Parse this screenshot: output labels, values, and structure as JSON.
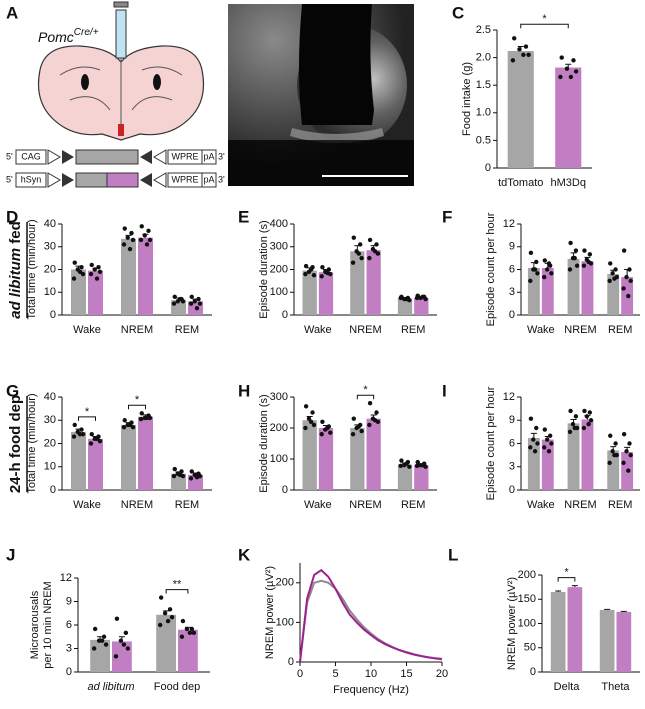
{
  "panels": [
    "A",
    "B",
    "C",
    "D",
    "E",
    "F",
    "G",
    "H",
    "I",
    "J",
    "K",
    "L"
  ],
  "schematic": {
    "genotype": "Pomc",
    "genotype_sup": "Cre/+",
    "rows": [
      [
        "5'",
        "CAG",
        "WPRE",
        "pA",
        "3'"
      ],
      [
        "5'",
        "hSyn",
        "WPRE",
        "pA",
        "3'"
      ]
    ]
  },
  "row_labels": [
    [
      "ad libitum",
      " fed"
    ],
    [
      "24-h food dep"
    ]
  ],
  "chart_data": [
    {
      "type": "bar",
      "ylabel": "Food intake (g)",
      "categories": [
        "tdTomato",
        "hM3Dq"
      ],
      "colors": [
        "#a6a6a6",
        "#c17ec3"
      ],
      "values": [
        2.12,
        1.82
      ],
      "errors": [
        0.08,
        0.06
      ],
      "points": [
        [
          2.35,
          2.2,
          2.15,
          2.05,
          1.95,
          2.05
        ],
        [
          2.0,
          1.95,
          1.8,
          1.75,
          1.65,
          1.65
        ]
      ],
      "significance": "*",
      "ylim": [
        0,
        2.5
      ],
      "yticks": [
        0,
        0.5,
        {
          "value": 1,
          "label": "1.0"
        },
        1.5,
        {
          "value": 2,
          "label": "2.0"
        },
        2.5
      ]
    },
    {
      "type": "grouped-bar",
      "ylabel": "Total time (min/hour)",
      "categories": [
        "Wake",
        "NREM",
        "REM"
      ],
      "series": [
        {
          "color": "#a6a6a6",
          "values": [
            20,
            33.5,
            6.5
          ],
          "errors": [
            1.5,
            1.5,
            1
          ],
          "points": [
            [
              23,
              21,
              20,
              18,
              16,
              19
            ],
            [
              38,
              36,
              34,
              33,
              31,
              29
            ],
            [
              8,
              7,
              6,
              6,
              5,
              7
            ]
          ]
        },
        {
          "color": "#c17ec3",
          "values": [
            19.5,
            34,
            6
          ],
          "errors": [
            1,
            1.5,
            1
          ],
          "points": [
            [
              22,
              21,
              20,
              19,
              18,
              16
            ],
            [
              39,
              37,
              35,
              33,
              33,
              31
            ],
            [
              8,
              7,
              6,
              5,
              5,
              3
            ]
          ]
        }
      ],
      "significance": [
        null,
        null,
        null
      ],
      "ylim": [
        0,
        40
      ],
      "yticks": [
        0,
        10,
        20,
        30,
        40
      ]
    },
    {
      "type": "grouped-bar",
      "ylabel": "Episode duration (s)",
      "categories": [
        "Wake",
        "NREM",
        "REM"
      ],
      "series": [
        {
          "color": "#a6a6a6",
          "values": [
            195,
            280,
            72
          ],
          "errors": [
            12,
            25,
            5
          ],
          "points": [
            [
              215,
              210,
              190,
              175,
              180,
              200
            ],
            [
              340,
              310,
              280,
              250,
              230,
              270
            ],
            [
              80,
              75,
              70,
              65,
              75,
              70
            ]
          ]
        },
        {
          "color": "#c17ec3",
          "values": [
            188,
            285,
            75
          ],
          "errors": [
            12,
            20,
            4
          ],
          "points": [
            [
              210,
              200,
              190,
              180,
              170,
              185
            ],
            [
              330,
              310,
              290,
              270,
              250,
              280
            ],
            [
              85,
              80,
              75,
              70,
              75,
              80
            ]
          ]
        }
      ],
      "significance": [
        null,
        null,
        null
      ],
      "ylim": [
        0,
        400
      ],
      "yticks": [
        0,
        100,
        200,
        300,
        400
      ]
    },
    {
      "type": "grouped-bar",
      "ylabel": "Episode count per hour",
      "categories": [
        "Wake",
        "NREM",
        "REM"
      ],
      "series": [
        {
          "color": "#a6a6a6",
          "values": [
            6.2,
            7.4,
            5.4
          ],
          "errors": [
            0.7,
            0.8,
            0.5
          ],
          "points": [
            [
              8.2,
              7,
              6,
              5.5,
              4.5,
              6
            ],
            [
              9.5,
              8.5,
              7.5,
              6.5,
              6,
              7.5
            ],
            [
              6.8,
              6,
              5.5,
              5,
              4.5,
              4.8
            ]
          ]
        },
        {
          "color": "#c17ec3",
          "values": [
            6.2,
            7.1,
            5.0
          ],
          "errors": [
            0.6,
            0.5,
            1
          ],
          "points": [
            [
              7.2,
              6.5,
              6,
              5.5,
              5,
              6.8
            ],
            [
              8.5,
              8,
              7.3,
              6.8,
              6.5,
              7
            ],
            [
              8.5,
              6,
              5,
              4.5,
              3.5,
              2.5
            ]
          ]
        }
      ],
      "significance": [
        null,
        null,
        null
      ],
      "ylim": [
        0,
        12
      ],
      "yticks": [
        0,
        3,
        6,
        9,
        12
      ]
    },
    {
      "type": "grouped-bar",
      "ylabel": "Total time (min/hour)",
      "categories": [
        "Wake",
        "NREM",
        "REM"
      ],
      "series": [
        {
          "color": "#a6a6a6",
          "values": [
            25,
            28,
            7
          ],
          "errors": [
            1.2,
            1,
            0.8
          ],
          "points": [
            [
              28,
              26,
              25,
              24,
              23,
              24
            ],
            [
              30,
              29,
              28,
              27,
              27,
              28
            ],
            [
              9,
              8,
              7,
              6,
              6,
              6.5
            ]
          ]
        },
        {
          "color": "#c17ec3",
          "values": [
            22,
            31.5,
            6.5
          ],
          "errors": [
            1,
            0.8,
            0.8
          ],
          "points": [
            [
              24,
              23,
              22,
              21,
              20,
              22
            ],
            [
              33,
              32,
              31,
              31,
              30.5,
              31
            ],
            [
              8,
              7,
              6.5,
              6,
              5,
              5.5
            ]
          ]
        }
      ],
      "significance": [
        "*",
        "*",
        null
      ],
      "ylim": [
        0,
        40
      ],
      "yticks": [
        0,
        10,
        20,
        30,
        40
      ]
    },
    {
      "type": "grouped-bar",
      "ylabel": "Episode duration (s)",
      "categories": [
        "Wake",
        "NREM",
        "REM"
      ],
      "series": [
        {
          "color": "#a6a6a6",
          "values": [
            225,
            200,
            82
          ],
          "errors": [
            12,
            10,
            5
          ],
          "points": [
            [
              270,
              250,
              230,
              210,
              200,
              220
            ],
            [
              230,
              210,
              200,
              190,
              180,
              205
            ],
            [
              95,
              90,
              80,
              75,
              78,
              85
            ]
          ]
        },
        {
          "color": "#c17ec3",
          "values": [
            200,
            230,
            80
          ],
          "errors": [
            8,
            12,
            4
          ],
          "points": [
            [
              220,
              205,
              195,
              185,
              180,
              200
            ],
            [
              280,
              250,
              230,
              220,
              210,
              225
            ],
            [
              90,
              85,
              80,
              75,
              78,
              80
            ]
          ]
        }
      ],
      "significance": [
        null,
        "*",
        null
      ],
      "ylim": [
        0,
        300
      ],
      "yticks": [
        0,
        100,
        200,
        300
      ]
    },
    {
      "type": "grouped-bar",
      "ylabel": "Episode count per hour",
      "categories": [
        "Wake",
        "NREM",
        "REM"
      ],
      "series": [
        {
          "color": "#a6a6a6",
          "values": [
            6.7,
            8.6,
            5.1
          ],
          "errors": [
            0.6,
            0.5,
            0.5
          ],
          "points": [
            [
              9.2,
              8,
              6.5,
              6,
              5.5,
              5
            ],
            [
              10.2,
              9.5,
              8.5,
              8,
              7.5,
              8
            ],
            [
              7,
              6,
              5,
              4.5,
              3.5,
              4.5
            ]
          ]
        },
        {
          "color": "#c17ec3",
          "values": [
            6.5,
            9.1,
            4.9
          ],
          "errors": [
            0.4,
            0.5,
            0.6
          ],
          "points": [
            [
              7.8,
              7,
              6.5,
              6,
              5.5,
              5
            ],
            [
              10.2,
              10,
              9.5,
              9,
              8,
              8.5
            ],
            [
              7.2,
              6,
              5,
              4.5,
              3.5,
              2.5
            ]
          ]
        }
      ],
      "significance": [
        null,
        null,
        null
      ],
      "ylim": [
        0,
        12
      ],
      "yticks": [
        0,
        3,
        6,
        9,
        12
      ]
    },
    {
      "type": "grouped-bar",
      "ylabel": [
        "Microarousals",
        "per 10 min NREM"
      ],
      "categories": [
        "ad libitum",
        "Food dep"
      ],
      "category_italic": [
        true,
        false
      ],
      "series": [
        {
          "color": "#a6a6a6",
          "values": [
            4.1,
            7.3
          ],
          "errors": [
            0.4,
            0.5
          ],
          "points": [
            [
              5.5,
              4.5,
              4,
              3.5,
              3,
              4
            ],
            [
              9.5,
              8,
              7.5,
              7,
              6,
              6.5
            ]
          ]
        },
        {
          "color": "#c17ec3",
          "values": [
            3.9,
            5.4
          ],
          "errors": [
            0.6,
            0.3
          ],
          "points": [
            [
              6.8,
              5,
              4,
              3,
              2,
              3.5
            ],
            [
              6.5,
              5.5,
              5.5,
              5,
              4.5,
              5
            ]
          ]
        }
      ],
      "significance": [
        null,
        "**"
      ],
      "ylim": [
        0,
        12
      ],
      "yticks": [
        0,
        3,
        6,
        9,
        12
      ]
    },
    {
      "type": "line",
      "ylabel": "NREM power (µV²)",
      "xlabel": "Frequency (Hz)",
      "x": [
        0,
        1,
        2,
        3,
        4,
        5,
        6,
        7,
        8,
        9,
        10,
        11,
        12,
        13,
        14,
        15,
        16,
        17,
        18,
        19,
        20
      ],
      "series": [
        {
          "color": "#8c8c8c",
          "values": [
            0,
            150,
            200,
            205,
            200,
            185,
            160,
            130,
            108,
            88,
            72,
            58,
            47,
            38,
            30,
            25,
            20,
            16,
            12,
            10,
            8
          ]
        },
        {
          "color": "#a0208f",
          "values": [
            0,
            160,
            220,
            232,
            215,
            185,
            150,
            120,
            100,
            82,
            68,
            55,
            45,
            37,
            30,
            24,
            19,
            15,
            12,
            9,
            7
          ]
        }
      ],
      "xlim": [
        0,
        20
      ],
      "xticks": [
        0,
        5,
        10,
        15,
        20
      ],
      "ylim": [
        0,
        250
      ],
      "yticks": [
        0,
        100,
        200
      ]
    },
    {
      "type": "grouped-bar",
      "ylabel": "NREM power (µV²)",
      "categories": [
        "Delta",
        "Theta"
      ],
      "series": [
        {
          "color": "#a6a6a6",
          "values": [
            165,
            128
          ],
          "errors": [
            2,
            1
          ]
        },
        {
          "color": "#c17ec3",
          "values": [
            175,
            124
          ],
          "errors": [
            3,
            1
          ]
        }
      ],
      "significance": [
        "*",
        null
      ],
      "ylim": [
        0,
        200
      ],
      "yticks": [
        0,
        50,
        100,
        150,
        200
      ]
    }
  ]
}
